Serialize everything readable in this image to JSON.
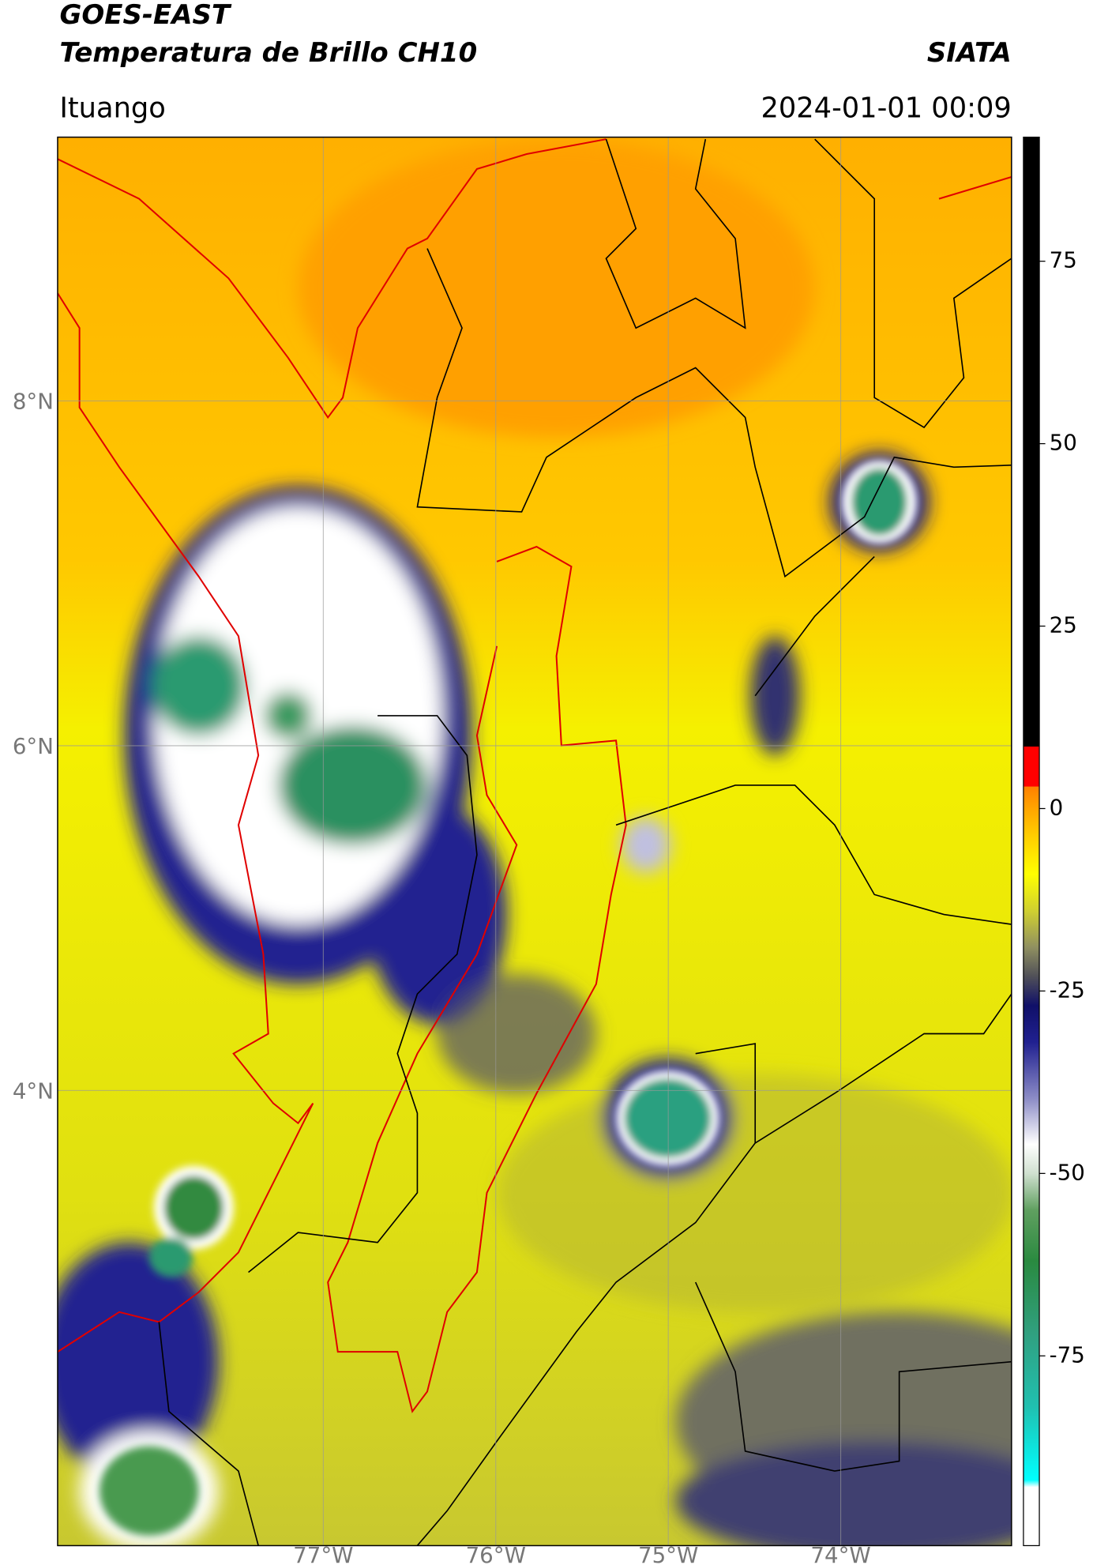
{
  "header": {
    "title": "GOES-EAST",
    "subtitle": "Temperatura de Brillo CH10",
    "brand": "SIATA",
    "location": "Ituango",
    "timestamp": "2024-01-01 00:09"
  },
  "map": {
    "xlim": [
      -78.54,
      -73.01
    ],
    "ylim": [
      1.36,
      9.53
    ],
    "grid": true,
    "xticks": [
      {
        "value": -77,
        "label": "77°W"
      },
      {
        "value": -76,
        "label": "76°W"
      },
      {
        "value": -75,
        "label": "75°W"
      },
      {
        "value": -74,
        "label": "74°W"
      }
    ],
    "yticks": [
      {
        "value": 8,
        "label": "8°N"
      },
      {
        "value": 6,
        "label": "6°N"
      },
      {
        "value": 4,
        "label": "4°N"
      }
    ]
  },
  "colorbar": {
    "clim": [
      -101,
      92
    ],
    "ticks": [
      75,
      50,
      25,
      0,
      -25,
      -50,
      -75
    ],
    "stops": [
      {
        "value": -101,
        "color": "#ffffff"
      },
      {
        "value": -93,
        "color": "#ffffff"
      },
      {
        "value": -92,
        "color": "#00ffff"
      },
      {
        "value": -82,
        "color": "#20c0b0"
      },
      {
        "value": -72,
        "color": "#30a080"
      },
      {
        "value": -62,
        "color": "#2a8a40"
      },
      {
        "value": -55,
        "color": "#60a060"
      },
      {
        "value": -50,
        "color": "#d0e0d0"
      },
      {
        "value": -46,
        "color": "#ffffff"
      },
      {
        "value": -40,
        "color": "#9090c8"
      },
      {
        "value": -32,
        "color": "#202090"
      },
      {
        "value": -27,
        "color": "#101068"
      },
      {
        "value": -23,
        "color": "#505058"
      },
      {
        "value": -19,
        "color": "#909060"
      },
      {
        "value": -14,
        "color": "#d0d030"
      },
      {
        "value": -9,
        "color": "#ffff00"
      },
      {
        "value": -4,
        "color": "#ffd000"
      },
      {
        "value": 0,
        "color": "#ffa500"
      },
      {
        "value": 3,
        "color": "#ff8000"
      },
      {
        "value": 3.01,
        "color": "#ff0000"
      },
      {
        "value": 8.5,
        "color": "#ff0000"
      },
      {
        "value": 8.51,
        "color": "#000000"
      },
      {
        "value": 92,
        "color": "#000000"
      }
    ]
  }
}
